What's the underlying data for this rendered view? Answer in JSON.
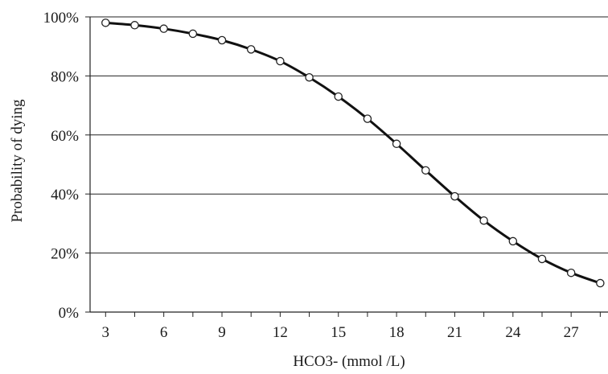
{
  "chart_data": {
    "type": "line",
    "xlabel": "HCO3- (mmol /L)",
    "ylabel": "Probability of dying",
    "x_ticks": [
      "3",
      "6",
      "9",
      "12",
      "15",
      "18",
      "21",
      "24",
      "27"
    ],
    "y_ticks": [
      "0%",
      "20%",
      "40%",
      "60%",
      "80%",
      "100%"
    ],
    "xlim": [
      2.2,
      28.9
    ],
    "ylim": [
      0,
      100
    ],
    "grid": "horizontal",
    "series": [
      {
        "x": [
          3,
          4.5,
          6,
          7.5,
          9,
          10.5,
          12,
          13.5,
          15,
          16.5,
          18,
          19.5,
          21,
          22.5,
          24,
          25.5,
          27,
          28.5
        ],
        "y": [
          98,
          97.2,
          96,
          94.3,
          92.1,
          89,
          85,
          79.5,
          73,
          65.5,
          57,
          48,
          39.2,
          31,
          24,
          18,
          13.3,
          9.8
        ]
      }
    ],
    "colors": {
      "line": "#111111",
      "marker_fill": "#ffffff",
      "marker_stroke": "#222222",
      "grid": "#222222"
    }
  }
}
